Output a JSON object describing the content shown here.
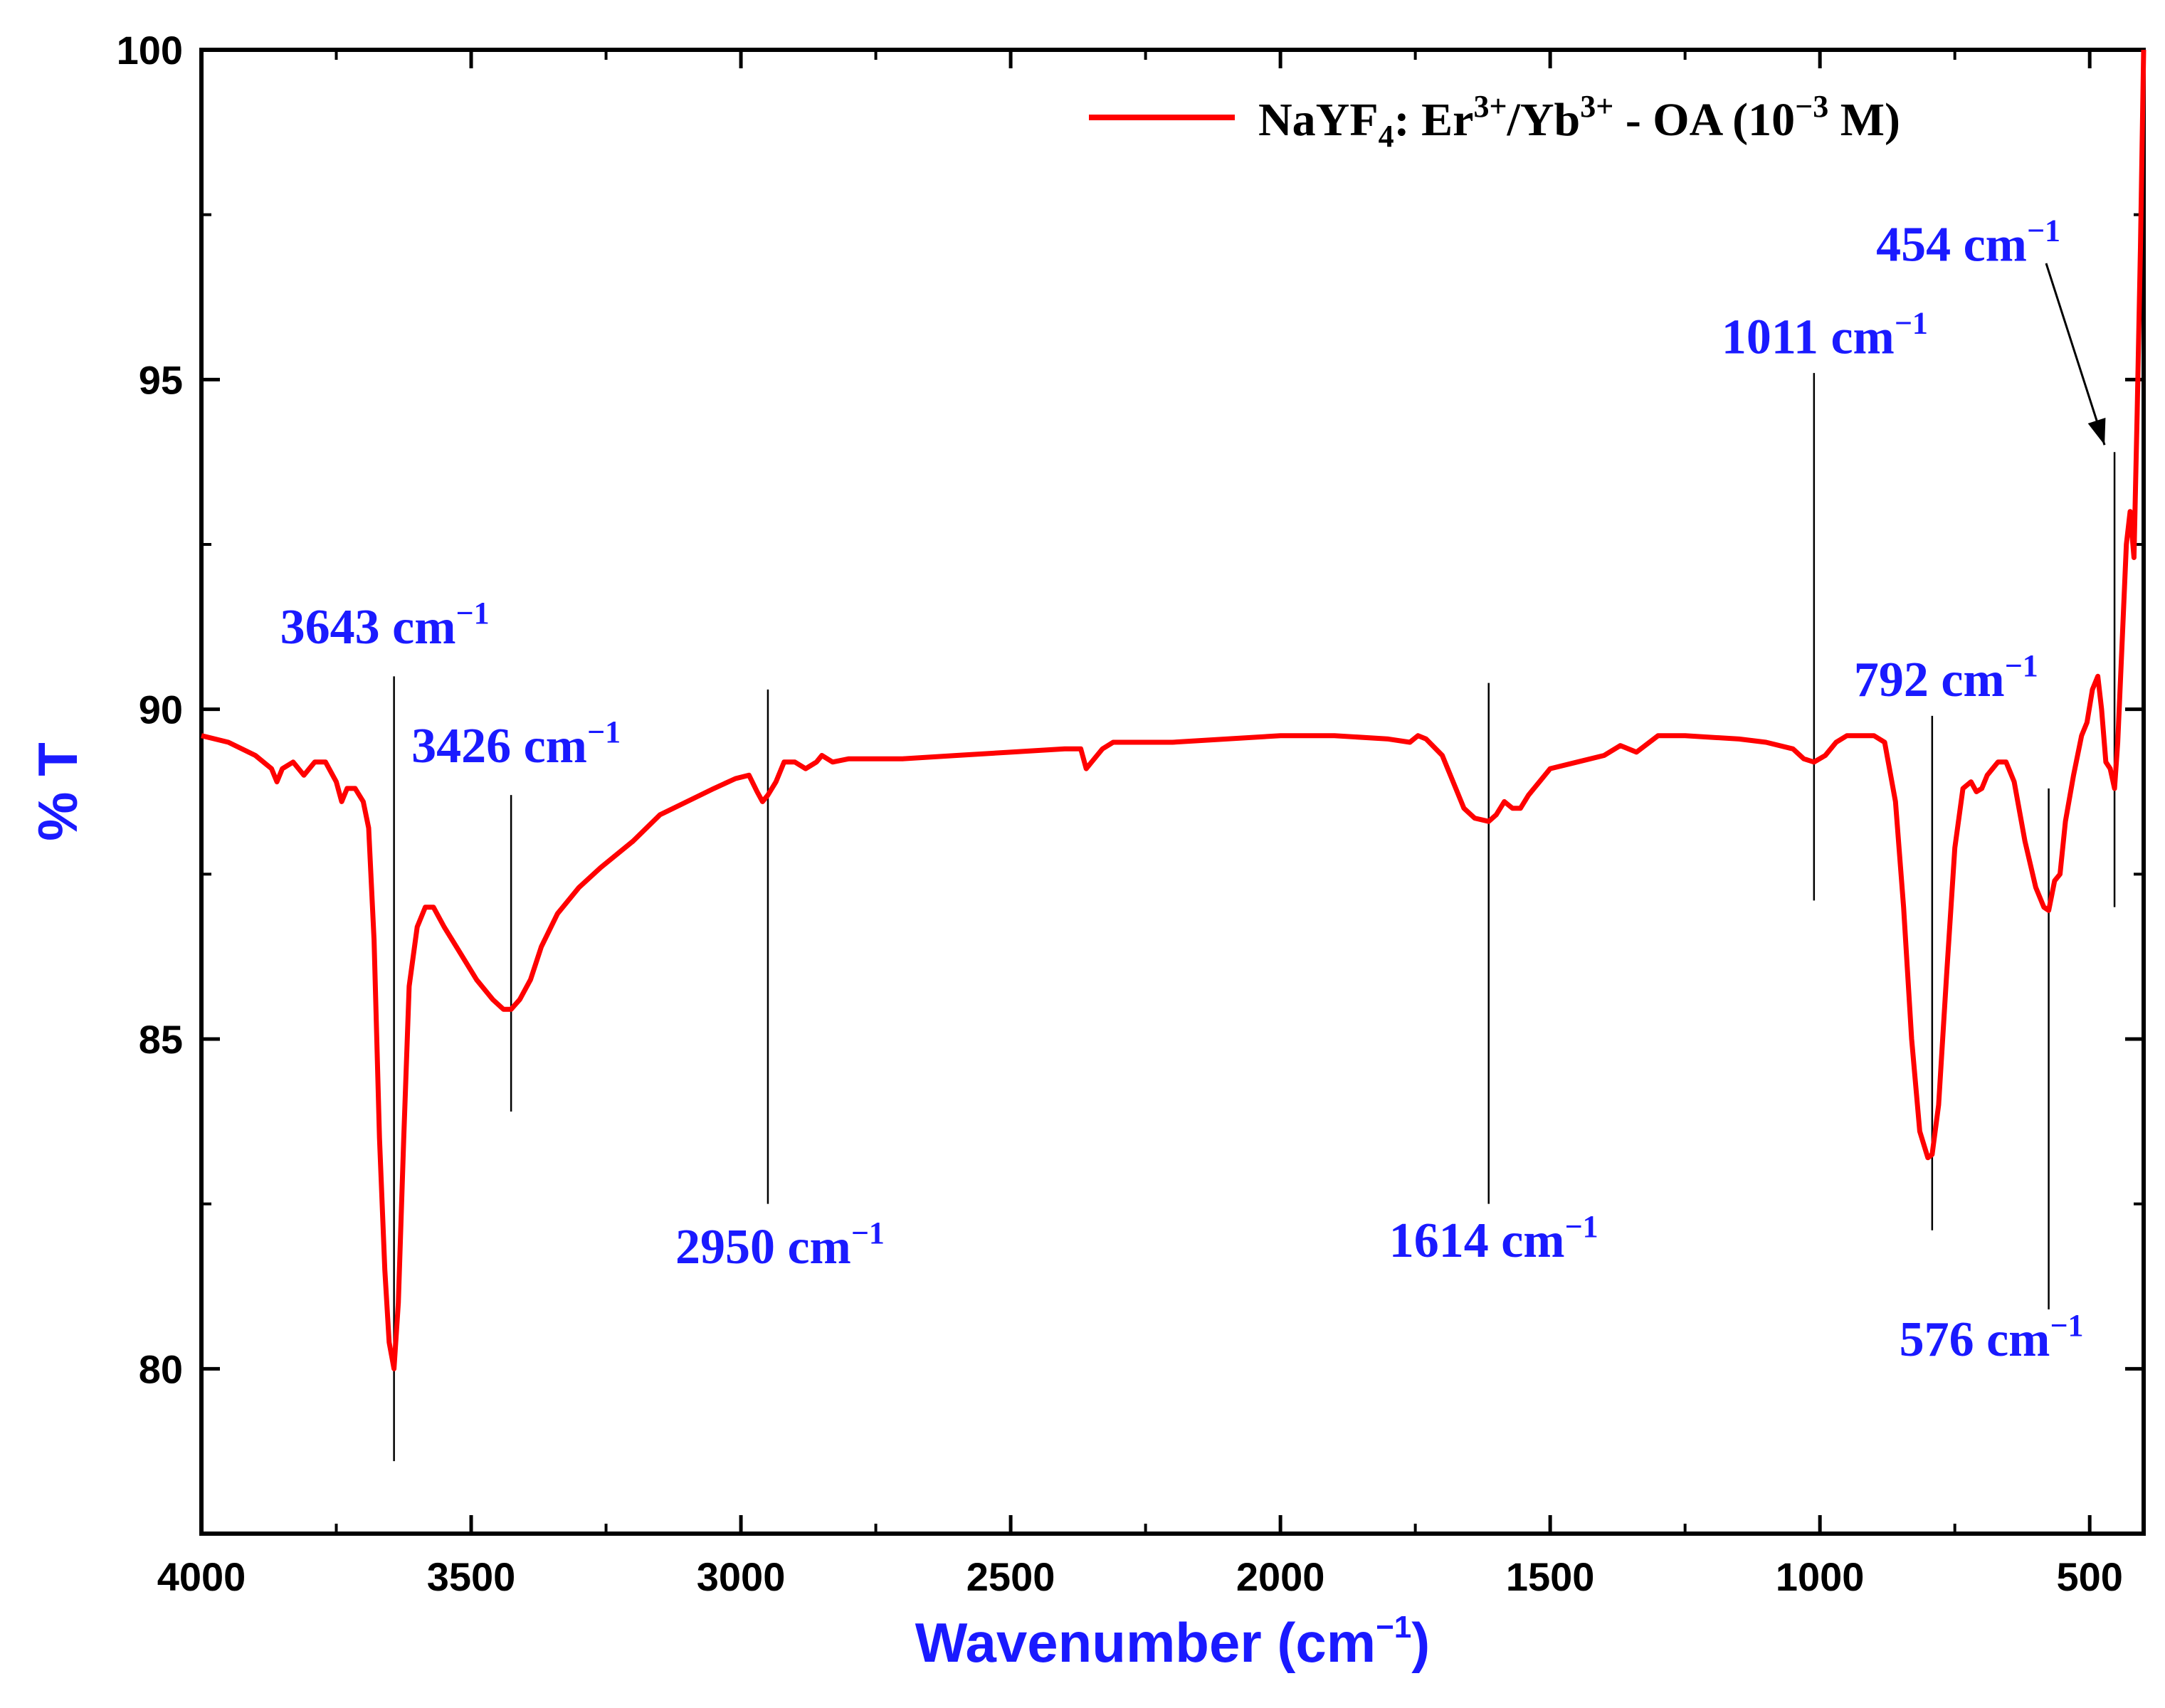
{
  "chart_data": {
    "type": "line",
    "title": "",
    "xlabel": "Wavenumber (cm",
    "xlabel_sup": "−1",
    "xlabel_close": ")",
    "ylabel": "% T",
    "xlim": [
      4000,
      400
    ],
    "ylim": [
      77.5,
      100
    ],
    "x_ticks": [
      4000,
      3500,
      3000,
      2500,
      2000,
      1500,
      1000,
      500
    ],
    "y_ticks": [
      80,
      85,
      90,
      95,
      100
    ],
    "legend": {
      "label_main": "NaYF",
      "label_sub": "4",
      "label_mid": ": Er",
      "label_sup1": "3+",
      "label_mid2": "/Yb",
      "label_sup2": "3+",
      "label_end": " - OA (10",
      "label_sup3": "−3",
      "label_close": " M)",
      "position": "top-right"
    },
    "series": [
      {
        "name": "NaYF4: Er3+/Yb3+ - OA (10−3 M)",
        "color": "#ff0000",
        "points": [
          [
            4000,
            89.6
          ],
          [
            3950,
            89.5
          ],
          [
            3900,
            89.3
          ],
          [
            3870,
            89.1
          ],
          [
            3860,
            88.9
          ],
          [
            3850,
            89.1
          ],
          [
            3830,
            89.2
          ],
          [
            3810,
            89.0
          ],
          [
            3790,
            89.2
          ],
          [
            3770,
            89.2
          ],
          [
            3750,
            88.9
          ],
          [
            3740,
            88.6
          ],
          [
            3730,
            88.8
          ],
          [
            3715,
            88.8
          ],
          [
            3700,
            88.6
          ],
          [
            3690,
            88.2
          ],
          [
            3680,
            86.5
          ],
          [
            3670,
            83.5
          ],
          [
            3660,
            81.5
          ],
          [
            3652,
            80.4
          ],
          [
            3643,
            80.0
          ],
          [
            3635,
            81.0
          ],
          [
            3625,
            83.5
          ],
          [
            3615,
            85.8
          ],
          [
            3600,
            86.7
          ],
          [
            3585,
            87.0
          ],
          [
            3570,
            87.0
          ],
          [
            3550,
            86.7
          ],
          [
            3520,
            86.3
          ],
          [
            3490,
            85.9
          ],
          [
            3460,
            85.6
          ],
          [
            3440,
            85.45
          ],
          [
            3426,
            85.45
          ],
          [
            3410,
            85.6
          ],
          [
            3390,
            85.9
          ],
          [
            3370,
            86.4
          ],
          [
            3340,
            86.9
          ],
          [
            3300,
            87.3
          ],
          [
            3260,
            87.6
          ],
          [
            3200,
            88.0
          ],
          [
            3150,
            88.4
          ],
          [
            3100,
            88.6
          ],
          [
            3050,
            88.8
          ],
          [
            3010,
            88.95
          ],
          [
            2985,
            89.0
          ],
          [
            2970,
            88.75
          ],
          [
            2960,
            88.6
          ],
          [
            2950,
            88.7
          ],
          [
            2935,
            88.9
          ],
          [
            2920,
            89.2
          ],
          [
            2900,
            89.2
          ],
          [
            2880,
            89.1
          ],
          [
            2860,
            89.2
          ],
          [
            2850,
            89.3
          ],
          [
            2830,
            89.2
          ],
          [
            2800,
            89.25
          ],
          [
            2700,
            89.25
          ],
          [
            2600,
            89.3
          ],
          [
            2500,
            89.35
          ],
          [
            2400,
            89.4
          ],
          [
            2370,
            89.4
          ],
          [
            2360,
            89.1
          ],
          [
            2350,
            89.2
          ],
          [
            2330,
            89.4
          ],
          [
            2310,
            89.5
          ],
          [
            2290,
            89.5
          ],
          [
            2200,
            89.5
          ],
          [
            2100,
            89.55
          ],
          [
            2000,
            89.6
          ],
          [
            1900,
            89.6
          ],
          [
            1800,
            89.55
          ],
          [
            1760,
            89.5
          ],
          [
            1745,
            89.6
          ],
          [
            1730,
            89.55
          ],
          [
            1700,
            89.3
          ],
          [
            1680,
            88.9
          ],
          [
            1660,
            88.5
          ],
          [
            1640,
            88.35
          ],
          [
            1614,
            88.3
          ],
          [
            1600,
            88.4
          ],
          [
            1585,
            88.6
          ],
          [
            1570,
            88.5
          ],
          [
            1555,
            88.5
          ],
          [
            1540,
            88.7
          ],
          [
            1520,
            88.9
          ],
          [
            1500,
            89.1
          ],
          [
            1450,
            89.2
          ],
          [
            1400,
            89.3
          ],
          [
            1370,
            89.45
          ],
          [
            1340,
            89.35
          ],
          [
            1300,
            89.6
          ],
          [
            1250,
            89.6
          ],
          [
            1150,
            89.55
          ],
          [
            1100,
            89.5
          ],
          [
            1050,
            89.4
          ],
          [
            1030,
            89.25
          ],
          [
            1011,
            89.2
          ],
          [
            990,
            89.3
          ],
          [
            970,
            89.5
          ],
          [
            950,
            89.6
          ],
          [
            900,
            89.6
          ],
          [
            880,
            89.5
          ],
          [
            860,
            88.6
          ],
          [
            845,
            87.0
          ],
          [
            830,
            85.0
          ],
          [
            815,
            83.6
          ],
          [
            800,
            83.2
          ],
          [
            792,
            83.25
          ],
          [
            780,
            84.0
          ],
          [
            765,
            86.0
          ],
          [
            750,
            87.9
          ],
          [
            735,
            88.8
          ],
          [
            720,
            88.9
          ],
          [
            710,
            88.75
          ],
          [
            700,
            88.8
          ],
          [
            690,
            89.0
          ],
          [
            670,
            89.2
          ],
          [
            655,
            89.2
          ],
          [
            640,
            88.9
          ],
          [
            620,
            88.0
          ],
          [
            600,
            87.3
          ],
          [
            585,
            87.0
          ],
          [
            576,
            86.95
          ],
          [
            565,
            87.4
          ],
          [
            555,
            87.5
          ],
          [
            545,
            88.3
          ],
          [
            530,
            89.0
          ],
          [
            515,
            89.6
          ],
          [
            505,
            89.8
          ],
          [
            495,
            90.3
          ],
          [
            485,
            90.5
          ],
          [
            478,
            90.0
          ],
          [
            470,
            89.2
          ],
          [
            462,
            89.1
          ],
          [
            454,
            88.8
          ],
          [
            448,
            89.5
          ],
          [
            440,
            91.0
          ],
          [
            432,
            92.5
          ],
          [
            425,
            93.0
          ],
          [
            418,
            92.3
          ],
          [
            412,
            94.5
          ],
          [
            406,
            97.0
          ],
          [
            402,
            99.0
          ],
          [
            400,
            100
          ]
        ]
      }
    ],
    "annotations": [
      {
        "label": "3643 cm",
        "x": 3643,
        "y_from": 78.6,
        "y_to": 90.5,
        "label_y": 91.0,
        "label_x_offset": -160
      },
      {
        "label": "3426 cm",
        "x": 3426,
        "y_from": 83.9,
        "y_to": 88.7,
        "label_y": 89.2,
        "label_x_offset": -140
      },
      {
        "label": "2950 cm",
        "x": 2950,
        "y_from": 82.5,
        "y_to": 90.3,
        "label_y": 81.6,
        "label_x_offset": -130
      },
      {
        "label": "1614 cm",
        "x": 1614,
        "y_from": 82.5,
        "y_to": 90.4,
        "label_y": 81.7,
        "label_x_offset": -140
      },
      {
        "label": "1011 cm",
        "x": 1011,
        "y_from": 87.1,
        "y_to": 95.1,
        "label_y": 95.4,
        "label_x_offset": -130
      },
      {
        "label": "792 cm",
        "x": 792,
        "y_from": 82.1,
        "y_to": 89.9,
        "label_y": 90.2,
        "label_x_offset": -110
      },
      {
        "label": "576 cm",
        "x": 576,
        "y_from": 80.9,
        "y_to": 88.8,
        "label_y": 80.2,
        "label_x_offset": -210
      },
      {
        "label": "454 cm",
        "x": 454,
        "y_from": 87.0,
        "y_to": 93.9,
        "label_y": 96.8,
        "label_x_offset": -335
      }
    ],
    "annotation_unit_sup": "−1"
  }
}
